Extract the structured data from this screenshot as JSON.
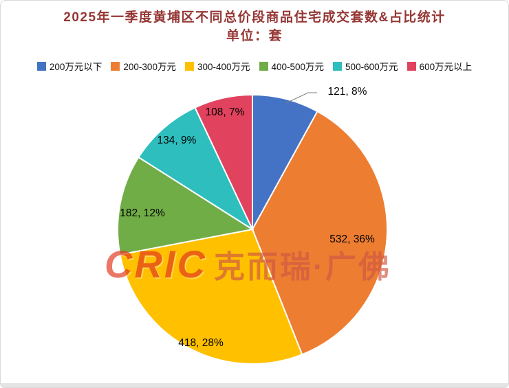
{
  "title": {
    "line1": "2025年一季度黄埔区不同总价段商品住宅成交套数&占比统计",
    "line2": "单位：套"
  },
  "watermark": {
    "logo": "CRIC",
    "text": "克而瑞·广佛"
  },
  "chart_data": {
    "type": "pie",
    "title": "2025年一季度黄埔区不同总价段商品住宅成交套数&占比统计",
    "subtitle": "单位：套",
    "unit": "套",
    "legend_position": "top",
    "start_angle_deg": 0,
    "direction": "clockwise",
    "label_format": "value, percent",
    "slices": [
      {
        "label": "200万元以下",
        "value": 121,
        "pct": 8,
        "color": "#4472C4"
      },
      {
        "label": "200-300万元",
        "value": 532,
        "pct": 36,
        "color": "#ED7D31"
      },
      {
        "label": "300-400万元",
        "value": 418,
        "pct": 28,
        "color": "#FFC000"
      },
      {
        "label": "400-500万元",
        "value": 182,
        "pct": 12,
        "color": "#70AD47"
      },
      {
        "label": "500-600万元",
        "value": 134,
        "pct": 9,
        "color": "#2EBEBE"
      },
      {
        "label": "600万元以上",
        "value": 108,
        "pct": 7,
        "color": "#E1425E"
      }
    ]
  }
}
